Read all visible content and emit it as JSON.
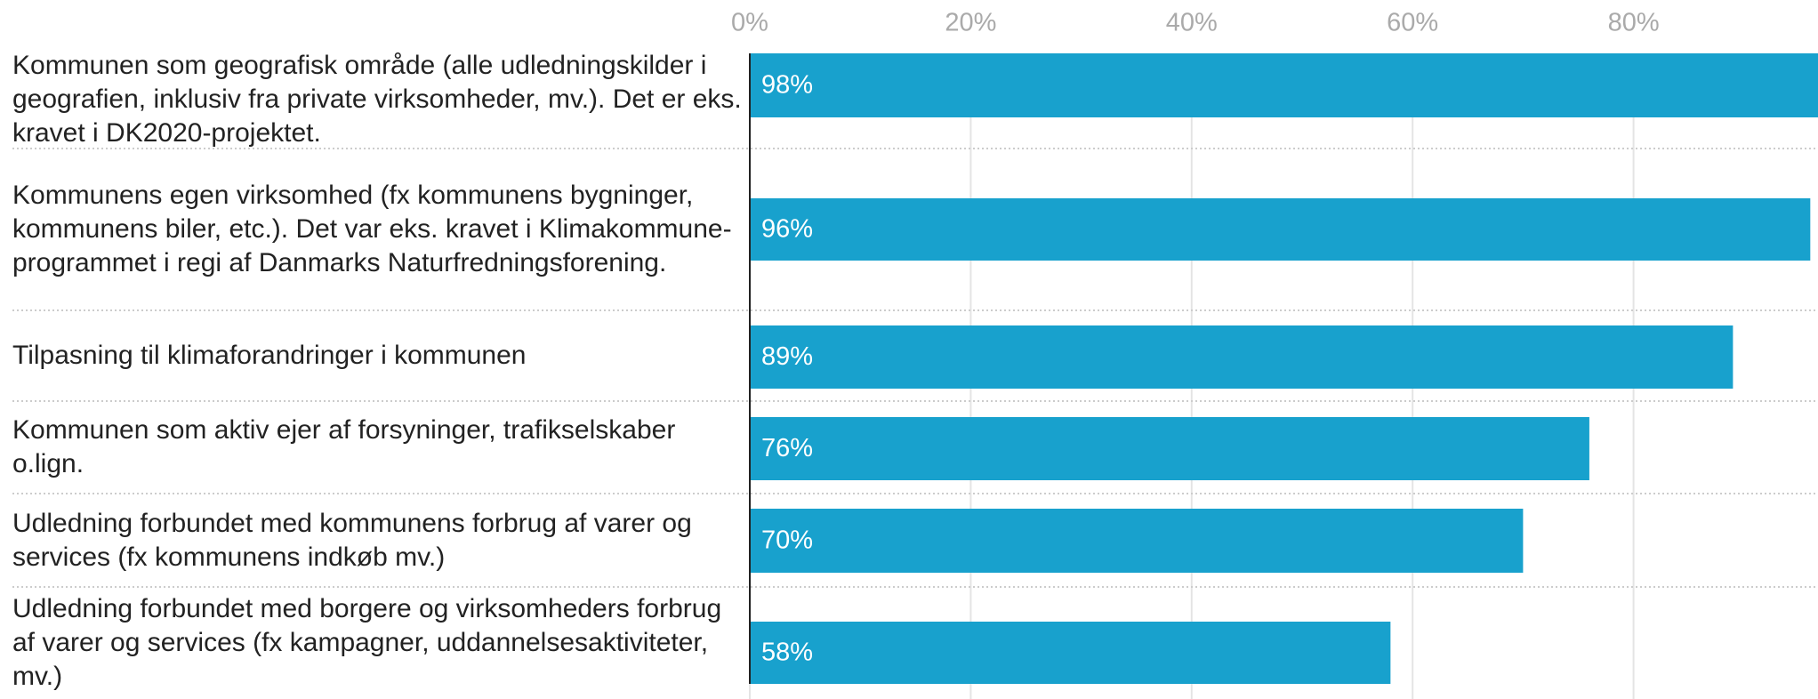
{
  "chart_data": {
    "type": "bar",
    "orientation": "horizontal",
    "categories": [
      "Kommunen som geografisk område (alle udledningskilder i geografien, inklusiv fra private virksomheder, mv.). Det er eks. kravet i DK2020-projektet.",
      "Kommunens egen virksomhed (fx kommunens bygninger, kommunens biler, etc.). Det var eks. kravet i Klimakommune-programmet i regi af Danmarks Naturfredningsforening.",
      "Tilpasning til klimaforandringer i kommunen",
      "Kommunen som aktiv ejer af forsyninger, trafikselskaber o.lign.",
      "Udledning forbundet med kommunens forbrug af varer og services (fx kommunens indkøb mv.)",
      "Udledning forbundet med borgere og virksomheders forbrug af varer og services (fx kampagner, uddannelsesaktiviteter, mv.)"
    ],
    "values": [
      98,
      96,
      89,
      76,
      70,
      58
    ],
    "value_labels": [
      "98%",
      "96%",
      "89%",
      "76%",
      "70%",
      "58%"
    ],
    "color": "#18a1cd",
    "xlim": [
      0,
      100
    ],
    "xticks": [
      {
        "value": 0,
        "label": "0%"
      },
      {
        "value": 20,
        "label": "20%"
      },
      {
        "value": 40,
        "label": "40%"
      },
      {
        "value": 60,
        "label": "60%"
      },
      {
        "value": 80,
        "label": "80%"
      }
    ],
    "grid": true
  }
}
